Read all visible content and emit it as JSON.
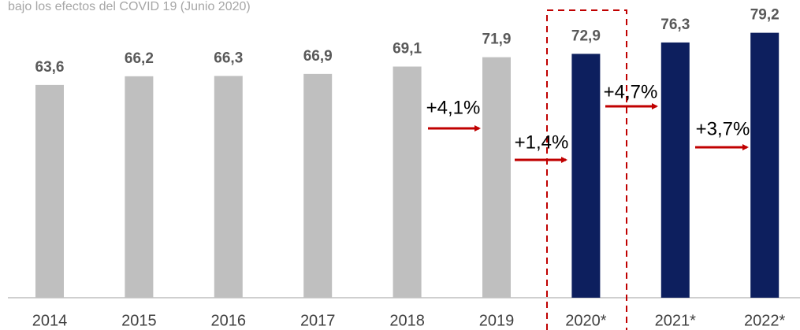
{
  "chart_data": {
    "type": "bar",
    "subtitle": "bajo los efectos del COVID 19 (Junio 2020)",
    "categories": [
      "2014",
      "2015",
      "2016",
      "2017",
      "2018",
      "2019",
      "2020*",
      "2021*",
      "2022*"
    ],
    "values": [
      63.6,
      66.2,
      66.3,
      66.9,
      69.1,
      71.9,
      72.9,
      76.3,
      79.2
    ],
    "value_labels": [
      "63,6",
      "66,2",
      "66,3",
      "66,9",
      "69,1",
      "71,9",
      "72,9",
      "76,3",
      "79,2"
    ],
    "colors": [
      "#bfbfbf",
      "#bfbfbf",
      "#bfbfbf",
      "#bfbfbf",
      "#bfbfbf",
      "#bfbfbf",
      "#0d1f5e",
      "#0d1f5e",
      "#0d1f5e"
    ],
    "ylim": [
      0,
      89
    ],
    "annotations": [
      "+4,1%",
      "+1,4%",
      "+4,7%",
      "+3,7%"
    ]
  }
}
